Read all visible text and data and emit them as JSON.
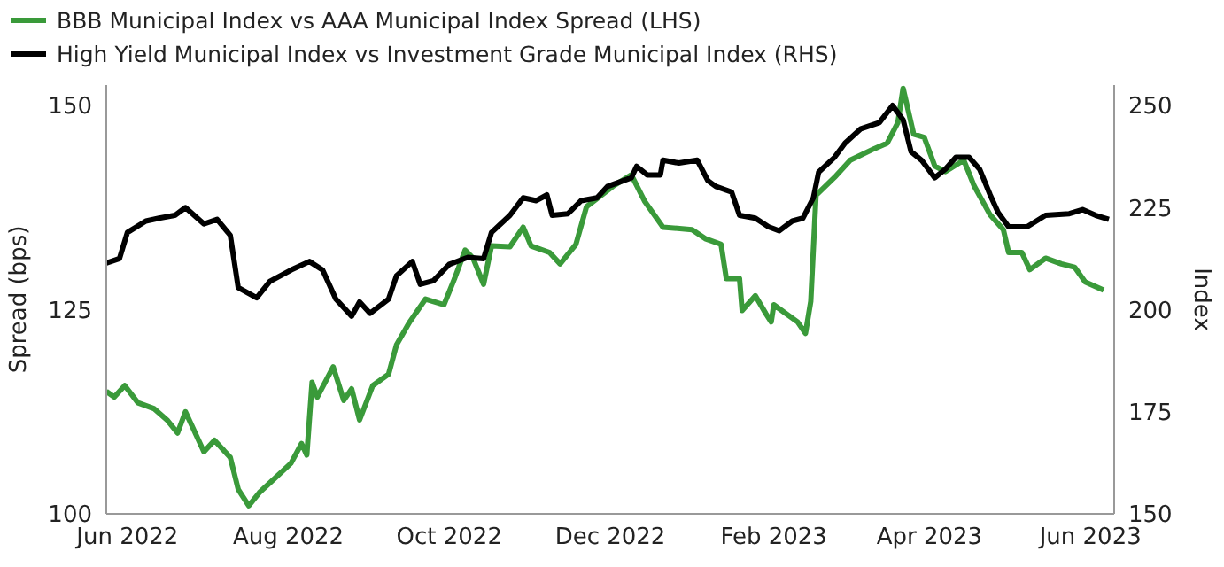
{
  "chart_data": {
    "type": "line",
    "ylabel": "Spread (bps)",
    "y2label": "Index",
    "legend": "top left",
    "grid": false,
    "line_style": "solid",
    "marker": "none",
    "xlim": [
      "2022-05-24",
      "2023-06-10"
    ],
    "xticks": [
      {
        "value": "2022-06-01",
        "label": "Jun 2022"
      },
      {
        "value": "2022-08-01",
        "label": "Aug 2022"
      },
      {
        "value": "2022-10-01",
        "label": "Oct 2022"
      },
      {
        "value": "2022-12-01",
        "label": "Dec 2022"
      },
      {
        "value": "2023-02-01",
        "label": "Feb 2023"
      },
      {
        "value": "2023-04-01",
        "label": "Apr 2023"
      },
      {
        "value": "2023-06-01",
        "label": "Jun 2023"
      }
    ],
    "ylim": [
      100,
      152.5
    ],
    "yticks": [
      100,
      125,
      150
    ],
    "y2lim": [
      150,
      255
    ],
    "y2ticks": [
      150,
      175,
      200,
      225,
      250
    ],
    "series": [
      {
        "name": "BBB Municipal Index vs AAA Municipal Index Spread (LHS)",
        "color": "#3a9a3a",
        "x": [
          "2022-05-24",
          "2022-05-27",
          "2022-05-31",
          "2022-06-05",
          "2022-06-11",
          "2022-06-16",
          "2022-06-20",
          "2022-06-23",
          "2022-06-30",
          "2022-07-04",
          "2022-07-10",
          "2022-07-13",
          "2022-07-17",
          "2022-07-21",
          "2022-07-27",
          "2022-08-02",
          "2022-08-06",
          "2022-08-08",
          "2022-08-10",
          "2022-08-12",
          "2022-08-18",
          "2022-08-22",
          "2022-08-25",
          "2022-08-28",
          "2022-09-02",
          "2022-09-08",
          "2022-09-11",
          "2022-09-16",
          "2022-09-22",
          "2022-09-29",
          "2022-10-03",
          "2022-10-07",
          "2022-10-10",
          "2022-10-14",
          "2022-10-17",
          "2022-10-24",
          "2022-10-29",
          "2022-11-01",
          "2022-11-08",
          "2022-11-12",
          "2022-11-18",
          "2022-11-22",
          "2022-12-02",
          "2022-12-09",
          "2022-12-14",
          "2022-12-21",
          "2023-01-01",
          "2023-01-06",
          "2023-01-12",
          "2023-01-14",
          "2023-01-19",
          "2023-01-20",
          "2023-01-25",
          "2023-01-29",
          "2023-01-31",
          "2023-02-01",
          "2023-02-04",
          "2023-02-10",
          "2023-02-13",
          "2023-02-15",
          "2023-02-17",
          "2023-02-24",
          "2023-03-02",
          "2023-03-11",
          "2023-03-16",
          "2023-03-20",
          "2023-03-22",
          "2023-03-26",
          "2023-03-30",
          "2023-04-03",
          "2023-04-07",
          "2023-04-14",
          "2023-04-18",
          "2023-04-24",
          "2023-04-29",
          "2023-05-01",
          "2023-05-06",
          "2023-05-09",
          "2023-05-15",
          "2023-05-21",
          "2023-05-26",
          "2023-05-30",
          "2023-06-06"
        ],
        "values": [
          115.0,
          114.3,
          115.7,
          113.6,
          112.9,
          111.5,
          109.9,
          112.5,
          107.6,
          109.0,
          106.9,
          103.0,
          101.0,
          102.6,
          104.4,
          106.2,
          108.6,
          107.2,
          116.1,
          114.3,
          118.0,
          113.9,
          115.3,
          111.5,
          115.7,
          117.1,
          120.7,
          123.5,
          126.3,
          125.6,
          128.8,
          132.3,
          131.3,
          128.1,
          132.8,
          132.7,
          135.1,
          132.8,
          132.0,
          130.6,
          133.0,
          137.6,
          140.1,
          141.5,
          138.3,
          135.1,
          134.8,
          133.7,
          133.0,
          128.8,
          128.8,
          124.9,
          126.7,
          124.5,
          123.5,
          125.6,
          124.9,
          123.5,
          122.1,
          126.0,
          139.0,
          141.2,
          143.3,
          144.7,
          145.4,
          147.9,
          152.1,
          146.5,
          146.1,
          142.6,
          141.9,
          143.3,
          140.1,
          136.6,
          134.8,
          132.0,
          132.0,
          129.9,
          131.3,
          130.6,
          130.2,
          128.4,
          127.4
        ]
      },
      {
        "name": "High Yield Municipal Index vs Investment Grade Municipal Index (RHS)",
        "color": "#000000",
        "axis": "y2",
        "x": [
          "2022-05-24",
          "2022-05-29",
          "2022-06-01",
          "2022-06-08",
          "2022-06-13",
          "2022-06-19",
          "2022-06-23",
          "2022-06-30",
          "2022-07-05",
          "2022-07-10",
          "2022-07-13",
          "2022-07-20",
          "2022-07-25",
          "2022-08-02",
          "2022-08-09",
          "2022-08-14",
          "2022-08-19",
          "2022-08-25",
          "2022-08-28",
          "2022-09-01",
          "2022-09-08",
          "2022-09-11",
          "2022-09-17",
          "2022-09-20",
          "2022-09-25",
          "2022-10-01",
          "2022-10-08",
          "2022-10-14",
          "2022-10-17",
          "2022-10-24",
          "2022-10-29",
          "2022-11-03",
          "2022-11-07",
          "2022-11-09",
          "2022-11-15",
          "2022-11-20",
          "2022-11-26",
          "2022-11-30",
          "2022-12-09",
          "2022-12-11",
          "2022-12-15",
          "2022-12-20",
          "2022-12-21",
          "2022-12-27",
          "2023-01-03",
          "2023-01-07",
          "2023-01-10",
          "2023-01-16",
          "2023-01-19",
          "2023-01-25",
          "2023-01-30",
          "2023-02-03",
          "2023-02-08",
          "2023-02-12",
          "2023-02-16",
          "2023-02-18",
          "2023-02-24",
          "2023-02-28",
          "2023-03-06",
          "2023-03-13",
          "2023-03-18",
          "2023-03-22",
          "2023-03-25",
          "2023-03-29",
          "2023-04-03",
          "2023-04-07",
          "2023-04-11",
          "2023-04-16",
          "2023-04-20",
          "2023-04-24",
          "2023-04-27",
          "2023-05-01",
          "2023-05-08",
          "2023-05-15",
          "2023-05-24",
          "2023-05-29",
          "2023-06-03",
          "2023-06-08"
        ],
        "values": [
          211.4,
          212.5,
          218.9,
          221.7,
          222.4,
          223.1,
          225.0,
          221.0,
          222.1,
          218.2,
          205.4,
          202.9,
          206.9,
          209.7,
          211.8,
          209.7,
          202.6,
          198.4,
          201.9,
          199.1,
          202.6,
          208.3,
          211.8,
          206.2,
          207.1,
          211.1,
          212.8,
          212.5,
          218.9,
          223.1,
          227.4,
          226.7,
          228.1,
          223.1,
          223.5,
          226.7,
          227.4,
          230.2,
          232.3,
          235.1,
          233.0,
          233.0,
          236.6,
          235.9,
          236.6,
          231.6,
          230.2,
          228.8,
          223.1,
          222.4,
          220.3,
          219.3,
          221.7,
          222.4,
          227.4,
          233.7,
          237.3,
          240.8,
          244.3,
          245.8,
          250.0,
          246.5,
          238.7,
          236.6,
          232.3,
          234.4,
          237.3,
          237.3,
          234.4,
          228.1,
          223.8,
          220.3,
          220.3,
          223.1,
          223.5,
          224.5,
          223.1,
          222.1
        ]
      }
    ]
  }
}
